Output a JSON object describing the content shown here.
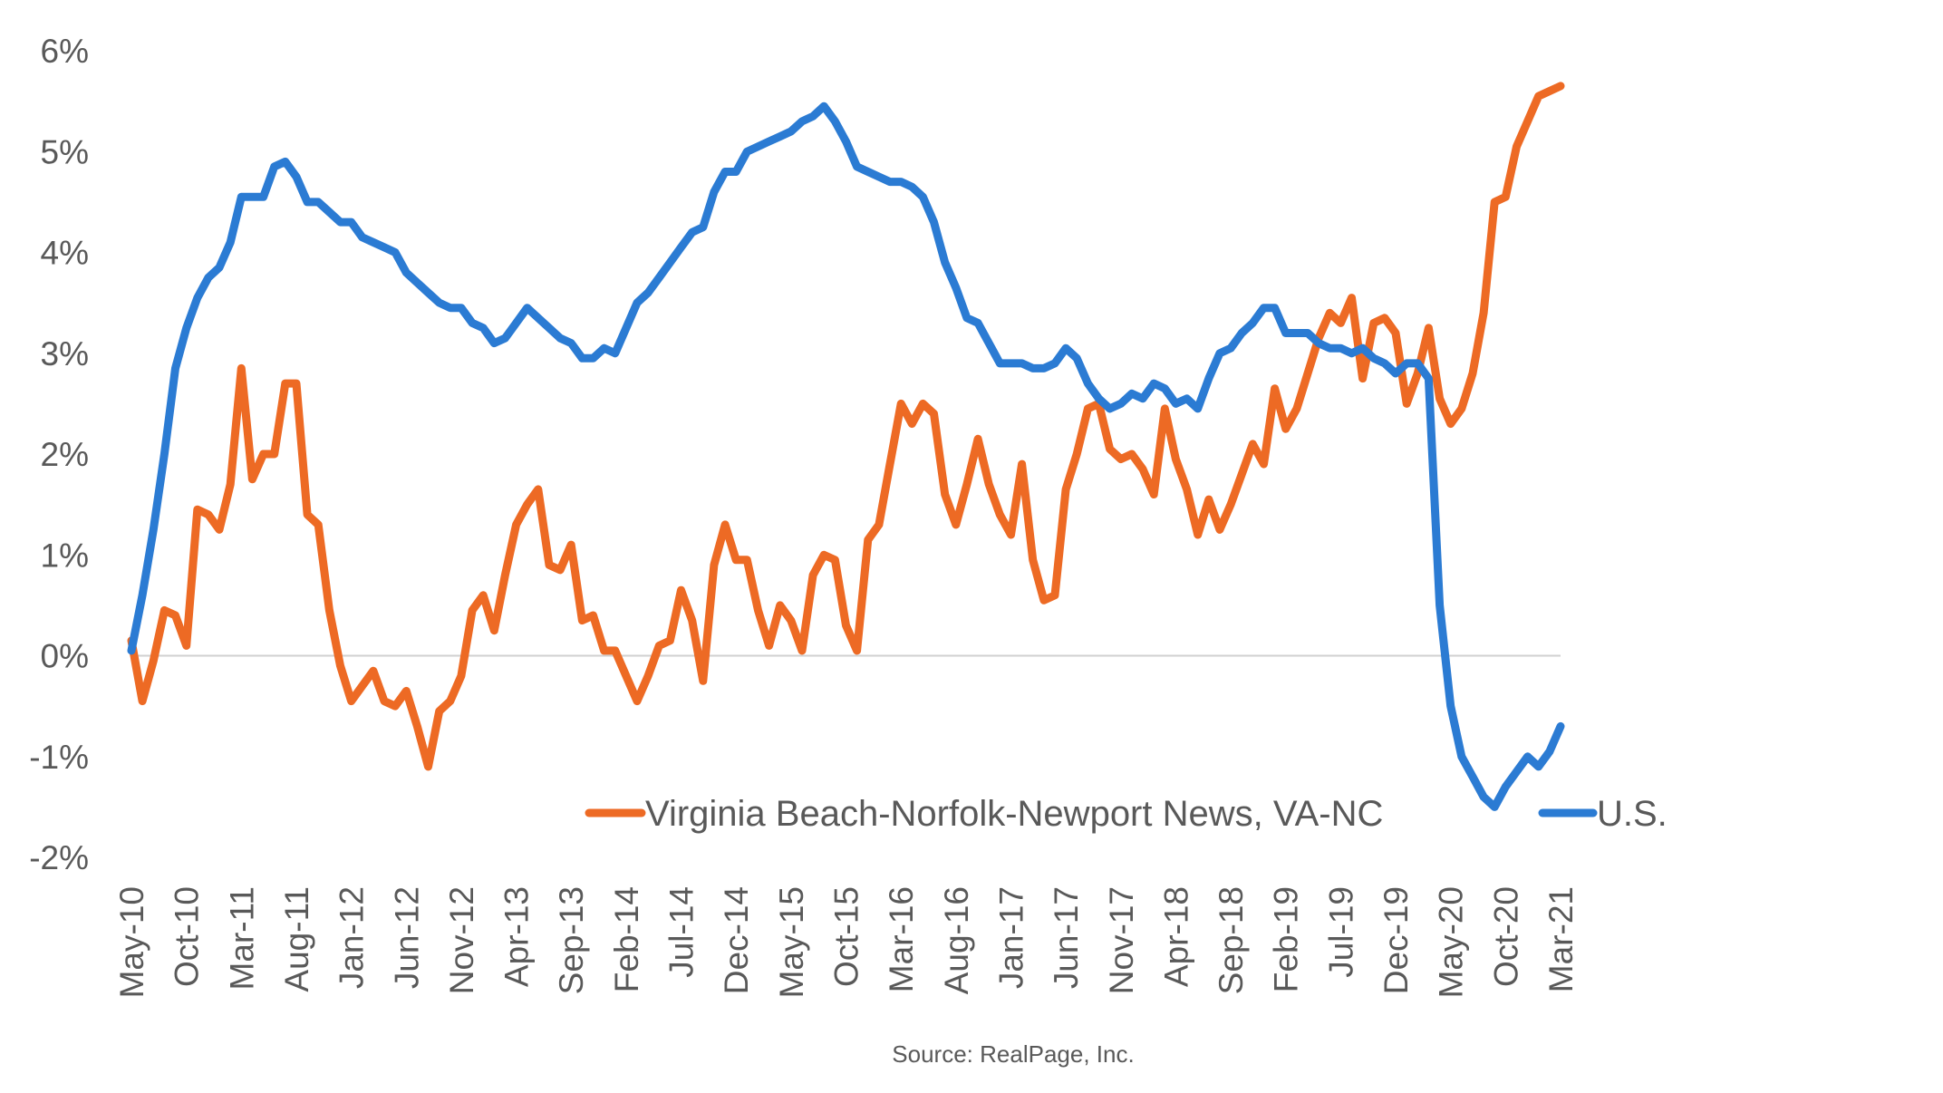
{
  "chart_data": {
    "type": "line",
    "title": "",
    "xlabel": "",
    "ylabel": "",
    "ylim": [
      -2,
      6
    ],
    "ytick_labels": [
      "6%",
      "5%",
      "4%",
      "3%",
      "2%",
      "1%",
      "0%",
      "-1%",
      "-2%"
    ],
    "ytick_values": [
      6,
      5,
      4,
      3,
      2,
      1,
      0,
      -1,
      -2
    ],
    "xtick_labels": [
      "May-10",
      "Oct-10",
      "Mar-11",
      "Aug-11",
      "Jan-12",
      "Jun-12",
      "Nov-12",
      "Apr-13",
      "Sep-13",
      "Feb-14",
      "Jul-14",
      "Dec-14",
      "May-15",
      "Oct-15",
      "Mar-16",
      "Aug-16",
      "Jan-17",
      "Jun-17",
      "Nov-17",
      "Apr-18",
      "Sep-18",
      "Feb-19",
      "Jul-19",
      "Dec-19",
      "May-20",
      "Oct-20",
      "Mar-21"
    ],
    "x_start": "May-10",
    "x_end": "Mar-21",
    "zero_line": true,
    "legend_position": "bottom-center",
    "source": "Source: RealPage, Inc.",
    "series": [
      {
        "name": "Virginia Beach-Norfolk-Newport News, VA-NC",
        "color": "#ED6A24",
        "values": [
          0.15,
          -0.45,
          -0.05,
          0.45,
          0.4,
          0.1,
          1.45,
          1.4,
          1.25,
          1.7,
          2.85,
          1.75,
          2.0,
          2.0,
          2.7,
          2.7,
          1.4,
          1.3,
          0.45,
          -0.1,
          -0.45,
          -0.3,
          -0.15,
          -0.45,
          -0.5,
          -0.35,
          -0.7,
          -1.1,
          -0.55,
          -0.45,
          -0.2,
          0.45,
          0.6,
          0.25,
          0.8,
          1.3,
          1.5,
          1.65,
          0.9,
          0.85,
          1.1,
          0.35,
          0.4,
          0.05,
          0.05,
          -0.2,
          -0.45,
          -0.2,
          0.1,
          0.15,
          0.65,
          0.35,
          -0.25,
          0.9,
          1.3,
          0.95,
          0.95,
          0.45,
          0.1,
          0.5,
          0.35,
          0.05,
          0.8,
          1.0,
          0.95,
          0.3,
          0.05,
          1.15,
          1.3,
          1.9,
          2.5,
          2.3,
          2.5,
          2.4,
          1.6,
          1.3,
          1.7,
          2.15,
          1.7,
          1.4,
          1.2,
          1.9,
          0.95,
          0.55,
          0.6,
          1.65,
          2.0,
          2.45,
          2.5,
          2.05,
          1.95,
          2.0,
          1.85,
          1.6,
          2.45,
          1.95,
          1.65,
          1.2,
          1.55,
          1.25,
          1.5,
          1.8,
          2.1,
          1.9,
          2.65,
          2.25,
          2.45,
          2.8,
          3.15,
          3.4,
          3.3,
          3.55,
          2.75,
          3.3,
          3.35,
          3.2,
          2.5,
          2.8,
          3.25,
          2.55,
          2.3,
          2.45,
          2.8,
          3.4,
          4.5,
          4.55,
          5.05,
          5.3,
          5.55,
          5.6,
          5.65
        ]
      },
      {
        "name": "U.S.",
        "color": "#2B7BD3",
        "values": [
          0.05,
          0.6,
          1.25,
          2.0,
          2.85,
          3.25,
          3.55,
          3.75,
          3.85,
          4.1,
          4.55,
          4.55,
          4.55,
          4.85,
          4.9,
          4.75,
          4.5,
          4.5,
          4.4,
          4.3,
          4.3,
          4.15,
          4.1,
          4.05,
          4.0,
          3.8,
          3.7,
          3.6,
          3.5,
          3.45,
          3.45,
          3.3,
          3.25,
          3.1,
          3.15,
          3.3,
          3.45,
          3.35,
          3.25,
          3.15,
          3.1,
          2.95,
          2.95,
          3.05,
          3.0,
          3.25,
          3.5,
          3.6,
          3.75,
          3.9,
          4.05,
          4.2,
          4.25,
          4.6,
          4.8,
          4.8,
          5.0,
          5.05,
          5.1,
          5.15,
          5.2,
          5.3,
          5.35,
          5.45,
          5.3,
          5.1,
          4.85,
          4.8,
          4.75,
          4.7,
          4.7,
          4.65,
          4.55,
          4.3,
          3.9,
          3.65,
          3.35,
          3.3,
          3.1,
          2.9,
          2.9,
          2.9,
          2.85,
          2.85,
          2.9,
          3.05,
          2.95,
          2.7,
          2.55,
          2.45,
          2.5,
          2.6,
          2.55,
          2.7,
          2.65,
          2.5,
          2.55,
          2.45,
          2.75,
          3.0,
          3.05,
          3.2,
          3.3,
          3.45,
          3.45,
          3.2,
          3.2,
          3.2,
          3.1,
          3.05,
          3.05,
          3.0,
          3.05,
          2.95,
          2.9,
          2.8,
          2.9,
          2.9,
          2.75,
          0.5,
          -0.5,
          -1.0,
          -1.2,
          -1.4,
          -1.5,
          -1.3,
          -1.15,
          -1.0,
          -1.1,
          -0.95,
          -0.7
        ]
      }
    ]
  }
}
